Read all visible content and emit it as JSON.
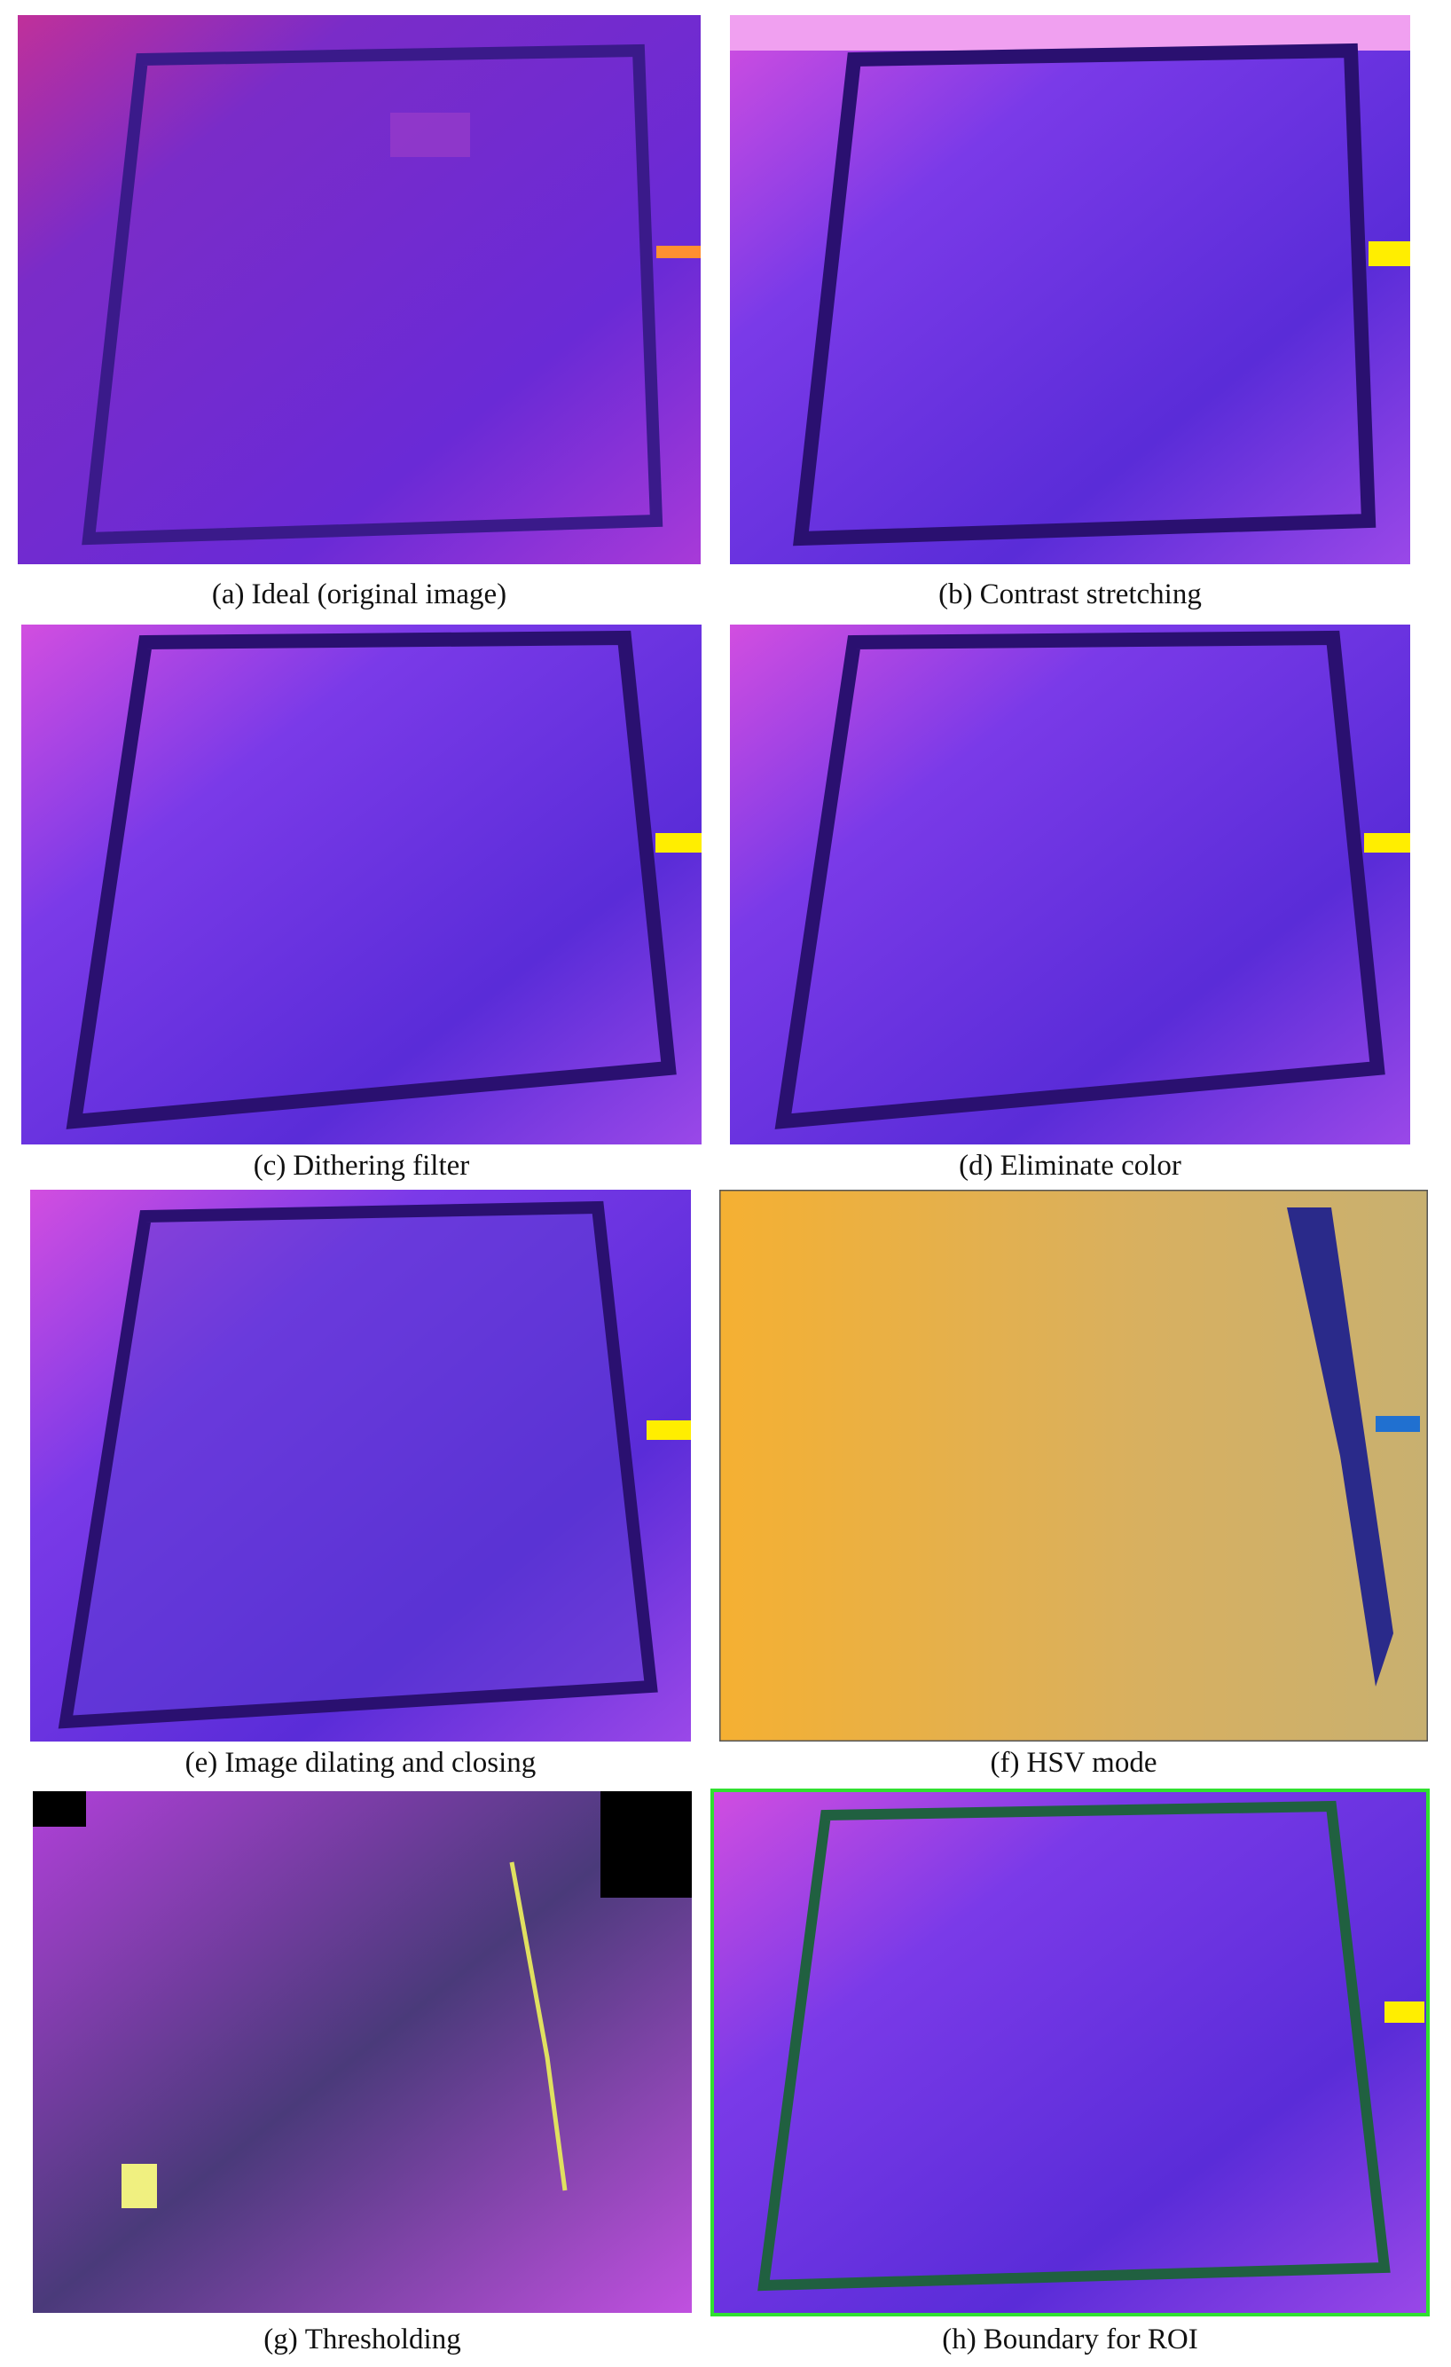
{
  "panels": [
    {
      "label": "(a)",
      "caption": "Ideal (original image)"
    },
    {
      "label": "(b)",
      "caption": "Contrast stretching"
    },
    {
      "label": "(c)",
      "caption": "Dithering filter"
    },
    {
      "label": "(d)",
      "caption": "Eliminate color"
    },
    {
      "label": "(e)",
      "caption": "Image dilating and closing"
    },
    {
      "label": "(f)",
      "caption": "HSV mode"
    },
    {
      "label": "(g)",
      "caption": "Thresholding"
    },
    {
      "label": "(h)",
      "caption": "Boundary for ROI"
    }
  ]
}
